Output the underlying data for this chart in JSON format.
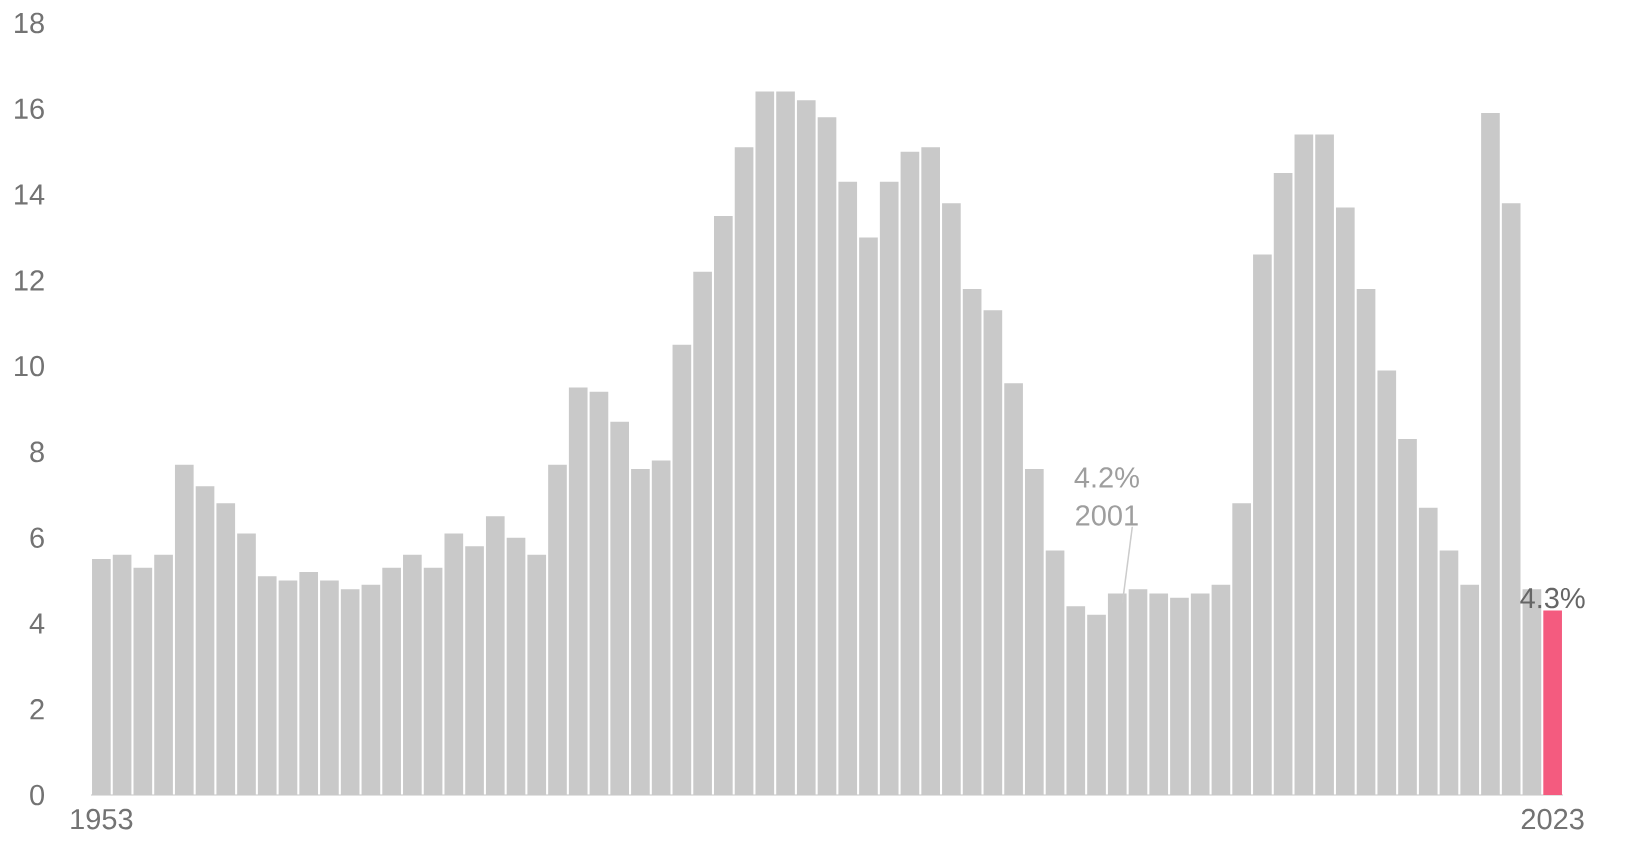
{
  "chart_data": {
    "type": "bar",
    "categories": [
      "1953",
      null,
      null,
      null,
      null,
      null,
      null,
      null,
      null,
      null,
      null,
      null,
      null,
      null,
      null,
      null,
      null,
      null,
      null,
      null,
      null,
      null,
      null,
      null,
      null,
      null,
      null,
      null,
      null,
      null,
      null,
      null,
      null,
      null,
      null,
      null,
      null,
      null,
      null,
      null,
      null,
      null,
      null,
      null,
      null,
      null,
      null,
      null,
      null,
      null,
      null,
      null,
      null,
      null,
      null,
      null,
      null,
      null,
      null,
      null,
      null,
      null,
      null,
      null,
      null,
      null,
      null,
      null,
      null,
      null,
      "2023"
    ],
    "values": [
      5.5,
      5.6,
      5.3,
      5.6,
      7.7,
      7.2,
      6.8,
      6.1,
      5.1,
      5.0,
      5.2,
      5.0,
      4.8,
      4.9,
      5.3,
      5.6,
      5.3,
      6.1,
      5.8,
      6.5,
      6.0,
      5.6,
      7.7,
      9.5,
      9.4,
      8.7,
      7.6,
      7.8,
      10.5,
      12.2,
      13.5,
      15.1,
      16.4,
      16.4,
      16.2,
      15.8,
      14.3,
      13.0,
      14.3,
      15.0,
      15.1,
      13.8,
      11.8,
      11.3,
      9.6,
      7.6,
      5.7,
      4.4,
      4.2,
      4.7,
      4.8,
      4.7,
      4.6,
      4.7,
      4.9,
      6.8,
      12.6,
      14.5,
      15.4,
      15.4,
      13.7,
      11.8,
      9.9,
      8.3,
      6.7,
      5.7,
      4.9,
      15.9,
      13.8,
      4.8,
      4.3
    ],
    "colors": [
      "#c9c9c9",
      "#c9c9c9",
      "#c9c9c9",
      "#c9c9c9",
      "#c9c9c9",
      "#c9c9c9",
      "#c9c9c9",
      "#c9c9c9",
      "#c9c9c9",
      "#c9c9c9",
      "#c9c9c9",
      "#c9c9c9",
      "#c9c9c9",
      "#c9c9c9",
      "#c9c9c9",
      "#c9c9c9",
      "#c9c9c9",
      "#c9c9c9",
      "#c9c9c9",
      "#c9c9c9",
      "#c9c9c9",
      "#c9c9c9",
      "#c9c9c9",
      "#c9c9c9",
      "#c9c9c9",
      "#c9c9c9",
      "#c9c9c9",
      "#c9c9c9",
      "#c9c9c9",
      "#c9c9c9",
      "#c9c9c9",
      "#c9c9c9",
      "#c9c9c9",
      "#c9c9c9",
      "#c9c9c9",
      "#c9c9c9",
      "#c9c9c9",
      "#c9c9c9",
      "#c9c9c9",
      "#c9c9c9",
      "#c9c9c9",
      "#c9c9c9",
      "#c9c9c9",
      "#c9c9c9",
      "#c9c9c9",
      "#c9c9c9",
      "#c9c9c9",
      "#c9c9c9",
      "#c9c9c9",
      "#c9c9c9",
      "#c9c9c9",
      "#c9c9c9",
      "#c9c9c9",
      "#c9c9c9",
      "#c9c9c9",
      "#c9c9c9",
      "#c9c9c9",
      "#c9c9c9",
      "#c9c9c9",
      "#c9c9c9",
      "#c9c9c9",
      "#c9c9c9",
      "#c9c9c9",
      "#c9c9c9",
      "#c9c9c9",
      "#c9c9c9",
      "#c9c9c9",
      "#c9c9c9",
      "#c9c9c9",
      "#c9c9c9",
      "#f45b7f"
    ],
    "value_labels": [
      null,
      null,
      null,
      null,
      null,
      null,
      null,
      null,
      null,
      null,
      null,
      null,
      null,
      null,
      null,
      null,
      null,
      null,
      null,
      null,
      null,
      null,
      null,
      null,
      null,
      null,
      null,
      null,
      null,
      null,
      null,
      null,
      null,
      null,
      null,
      null,
      null,
      null,
      null,
      null,
      null,
      null,
      null,
      null,
      null,
      null,
      null,
      null,
      null,
      null,
      null,
      null,
      null,
      null,
      null,
      null,
      null,
      null,
      null,
      null,
      null,
      null,
      null,
      null,
      null,
      null,
      null,
      null,
      null,
      null,
      "4.3%"
    ],
    "annotations": [
      "4.2%",
      "2001"
    ],
    "ylim": [
      0,
      18
    ],
    "yticks": [
      0,
      2,
      4,
      6,
      8,
      10,
      12,
      14,
      16,
      18
    ]
  }
}
